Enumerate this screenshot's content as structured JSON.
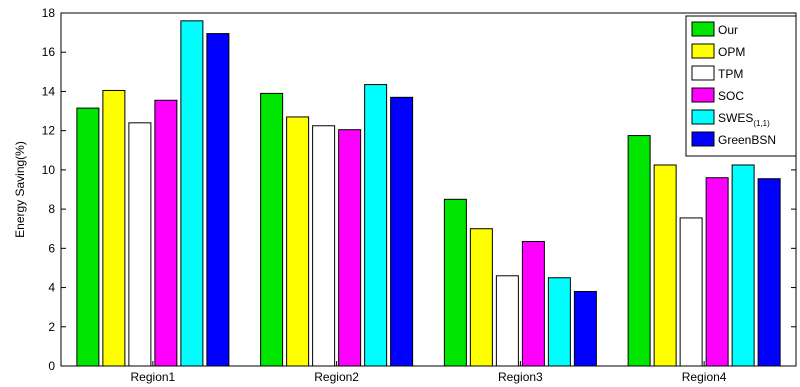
{
  "chart_data": {
    "type": "bar",
    "title": "",
    "xlabel": "",
    "ylabel": "Energy Saving(%)",
    "ylim": [
      0,
      18
    ],
    "yticks": [
      0,
      2,
      4,
      6,
      8,
      10,
      12,
      14,
      16,
      18
    ],
    "categories": [
      "Region1",
      "Region2",
      "Region3",
      "Region4"
    ],
    "legend_position": "top-right",
    "grid": false,
    "series": [
      {
        "name": "Our",
        "label_main": "Our",
        "label_sub": "",
        "color": "#00e600",
        "values": [
          13.15,
          13.9,
          8.5,
          11.75
        ]
      },
      {
        "name": "OPM",
        "label_main": "OPM",
        "label_sub": "",
        "color": "#ffff00",
        "values": [
          14.05,
          12.7,
          7.0,
          10.25
        ]
      },
      {
        "name": "TPM",
        "label_main": "TPM",
        "label_sub": "",
        "color": "#ffffff",
        "values": [
          12.4,
          12.25,
          4.6,
          7.55
        ]
      },
      {
        "name": "SOC",
        "label_main": "SOC",
        "label_sub": "",
        "color": "#ff00ff",
        "values": [
          13.55,
          12.05,
          6.35,
          9.6
        ]
      },
      {
        "name": "SWES(1,1)",
        "label_main": "SWES",
        "label_sub": "(1,1)",
        "color": "#00ffff",
        "values": [
          17.6,
          14.35,
          4.5,
          10.25
        ]
      },
      {
        "name": "GreenBSN",
        "label_main": "GreenBSN",
        "label_sub": "",
        "color": "#0000ff",
        "values": [
          16.95,
          13.7,
          3.8,
          9.55
        ]
      }
    ]
  }
}
